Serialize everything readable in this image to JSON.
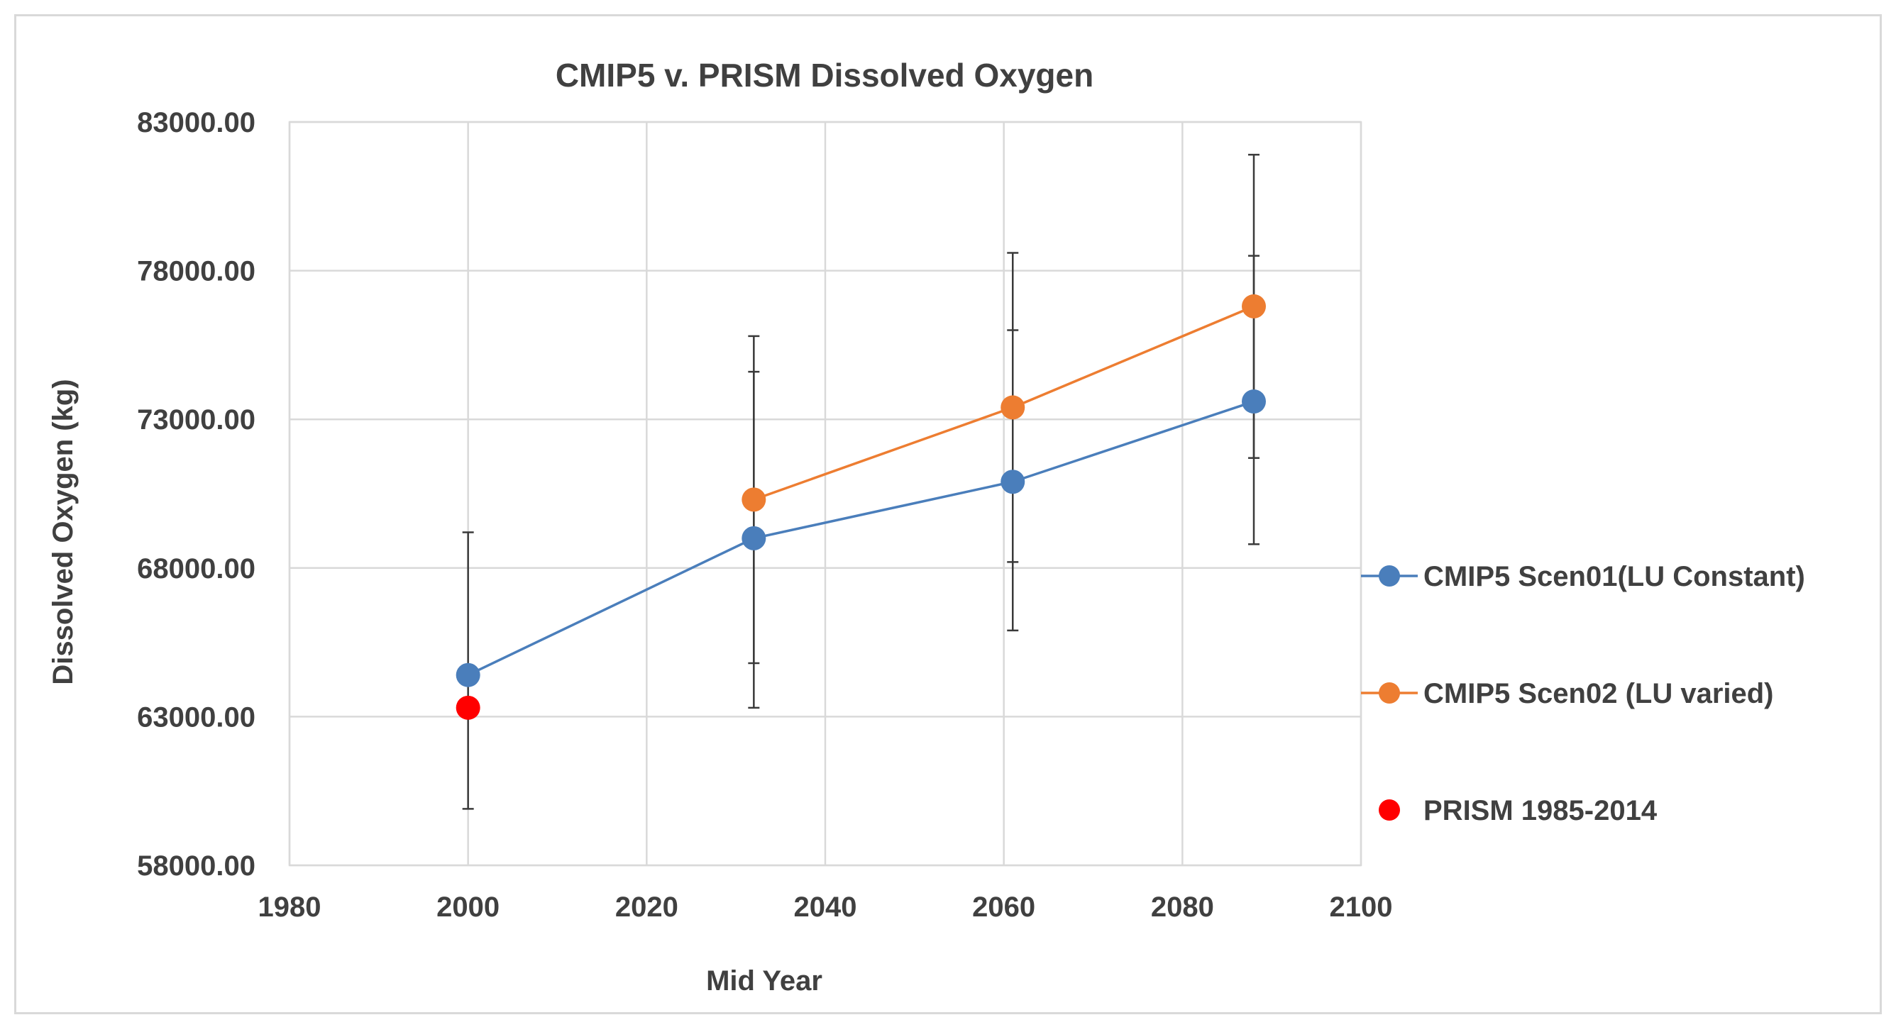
{
  "chart_data": {
    "type": "scatter",
    "title": "CMIP5 v. PRISM Dissolved Oxygen",
    "xlabel": "Mid Year",
    "ylabel": "Dissolved Oxygen (kg)",
    "xlim": [
      1980,
      2100
    ],
    "ylim": [
      58000,
      83000
    ],
    "x_ticks": [
      1980,
      2000,
      2020,
      2040,
      2060,
      2080,
      2100
    ],
    "y_ticks": [
      58000,
      63000,
      68000,
      73000,
      78000,
      83000
    ],
    "x_tick_labels": [
      "1980",
      "2000",
      "2020",
      "2040",
      "2060",
      "2080",
      "2100"
    ],
    "y_tick_labels": [
      "58000.00",
      "63000.00",
      "68000.00",
      "73000.00",
      "78000.00",
      "83000.00"
    ],
    "grid": true,
    "legend_position": "right",
    "series": [
      {
        "name": "CMIP5 Scen01(LU Constant)",
        "color": "#4a7ebb",
        "lines": true,
        "points": [
          {
            "x": 2000,
            "y": 64400,
            "err_low": 59900,
            "err_high": 69200
          },
          {
            "x": 2032,
            "y": 69000,
            "err_low": 64800,
            "err_high": 74600
          },
          {
            "x": 2061,
            "y": 70900,
            "err_low": 68200,
            "err_high": 76000
          },
          {
            "x": 2088,
            "y": 73600,
            "err_low": 71700,
            "err_high": 78500
          }
        ]
      },
      {
        "name": "CMIP5 Scen02 (LU varied)",
        "color": "#ed7d31",
        "lines": true,
        "points": [
          {
            "x": 2032,
            "y": 70300,
            "err_low": 63300,
            "err_high": 75800
          },
          {
            "x": 2061,
            "y": 73400,
            "err_low": 65900,
            "err_high": 78600
          },
          {
            "x": 2088,
            "y": 76800,
            "err_low": 68800,
            "err_high": 81900
          }
        ]
      },
      {
        "name": "PRISM 1985-2014",
        "color": "#ff0000",
        "lines": false,
        "points": [
          {
            "x": 2000,
            "y": 63300,
            "err_low": null,
            "err_high": null
          }
        ]
      }
    ]
  }
}
